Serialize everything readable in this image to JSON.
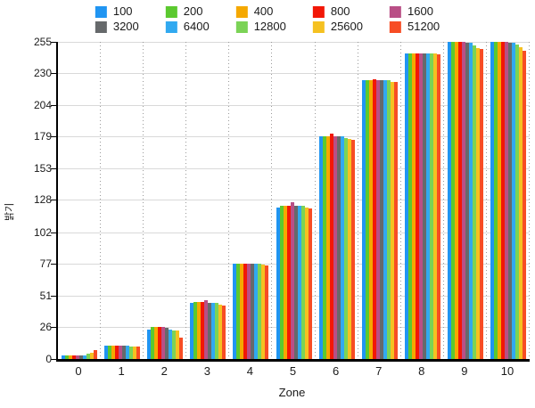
{
  "chart_data": {
    "type": "bar",
    "title": "",
    "xlabel": "Zone",
    "ylabel": "밝기",
    "categories": [
      "0",
      "1",
      "2",
      "3",
      "4",
      "5",
      "6",
      "7",
      "8",
      "9",
      "10"
    ],
    "y_ticks": [
      0,
      26,
      51,
      77,
      102,
      128,
      153,
      179,
      204,
      230,
      255
    ],
    "ylim": [
      0,
      255
    ],
    "legend_position": "top-center",
    "grid": {
      "horizontal": "solid-light-gray",
      "vertical": "dotted-gray"
    },
    "axis_color": "#000000",
    "gridline_color": "#d9d9d9",
    "series": [
      {
        "name": "100",
        "color": "#2095f2",
        "values": [
          3,
          11,
          24,
          45,
          77,
          122,
          179,
          224,
          246,
          255,
          255
        ]
      },
      {
        "name": "200",
        "color": "#5bc92f",
        "values": [
          3,
          11,
          26,
          46,
          77,
          123,
          179,
          224,
          246,
          255,
          255
        ]
      },
      {
        "name": "400",
        "color": "#f5a800",
        "values": [
          3,
          11,
          26,
          46,
          77,
          123,
          179,
          224,
          246,
          255,
          255
        ]
      },
      {
        "name": "800",
        "color": "#f21707",
        "values": [
          3,
          11,
          26,
          46,
          77,
          123,
          181,
          225,
          246,
          255,
          255
        ]
      },
      {
        "name": "1600",
        "color": "#b94f86",
        "values": [
          3,
          11,
          26,
          47,
          77,
          126,
          179,
          224,
          246,
          255,
          255
        ]
      },
      {
        "name": "3200",
        "color": "#66696b",
        "values": [
          3,
          11,
          25,
          45,
          77,
          123,
          179,
          224,
          246,
          254,
          254
        ]
      },
      {
        "name": "6400",
        "color": "#31a9f0",
        "values": [
          3,
          11,
          24,
          45,
          77,
          123,
          179,
          224,
          246,
          254,
          254
        ]
      },
      {
        "name": "12800",
        "color": "#7bd356",
        "values": [
          4,
          10,
          23,
          45,
          77,
          123,
          178,
          224,
          246,
          252,
          253
        ]
      },
      {
        "name": "25600",
        "color": "#f5c121",
        "values": [
          5,
          10,
          23,
          44,
          76,
          122,
          177,
          223,
          246,
          250,
          251
        ]
      },
      {
        "name": "51200",
        "color": "#f74d24",
        "values": [
          7,
          10,
          17,
          43,
          75,
          121,
          176,
          223,
          245,
          249,
          248
        ]
      }
    ]
  }
}
